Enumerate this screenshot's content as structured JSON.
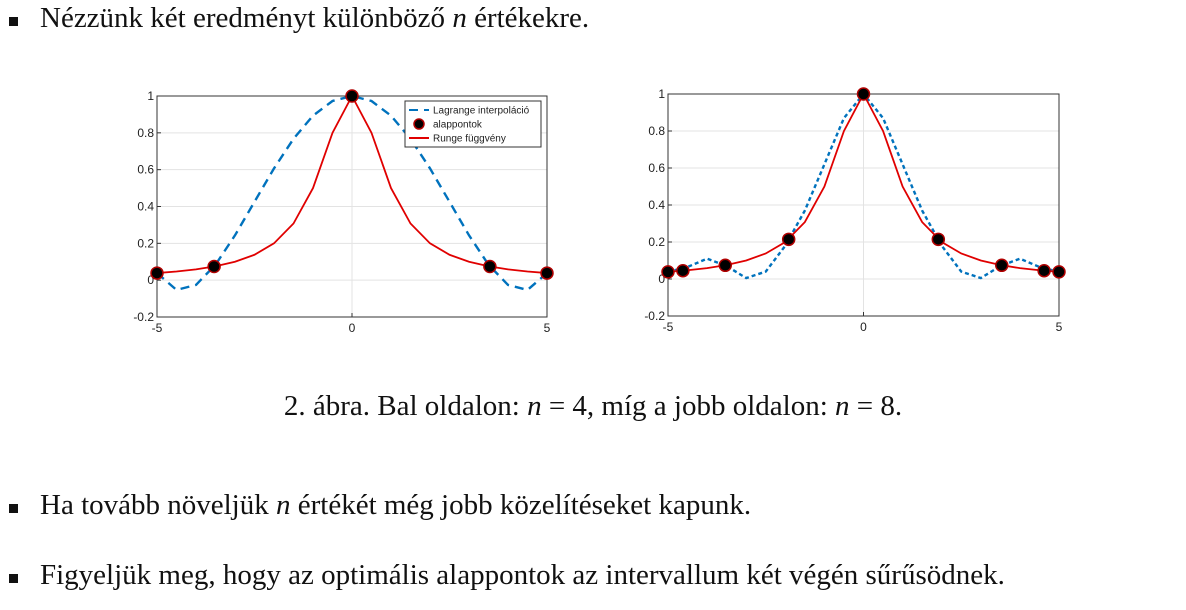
{
  "bullets": [
    {
      "parts": [
        "Nézzünk két eredményt különböző ",
        "n",
        " értékekre."
      ]
    },
    {
      "parts": [
        "Ha tovább növeljük ",
        "n",
        " értékét még jobb közelítéseket kapunk."
      ]
    },
    {
      "parts": [
        "Figyeljük meg, hogy az optimális alappontok az intervallum két végén sűrűsödnek."
      ]
    }
  ],
  "caption": {
    "parts": [
      "2. ábra. Bal oldalon: ",
      "n",
      " = 4, míg a jobb oldalon: ",
      "n",
      " = 8."
    ]
  },
  "chart_data": [
    {
      "type": "line",
      "xlim": [
        -5,
        5
      ],
      "ylim": [
        -0.2,
        1
      ],
      "xticks": [
        -5,
        0,
        5
      ],
      "yticks": [
        -0.2,
        0,
        0.2,
        0.4,
        0.6,
        0.8,
        1
      ],
      "grid": true,
      "legend": "upper right",
      "series": [
        {
          "name": "Lagrange interpoláció",
          "color": "#0072bd",
          "style": "dashed",
          "x": [
            -5,
            -4.5,
            -4,
            -3.5,
            -3,
            -2.5,
            -2,
            -1.5,
            -1,
            -0.5,
            0,
            0.5,
            1,
            1.5,
            2,
            2.5,
            3,
            3.5,
            4,
            4.5,
            5
          ],
          "values": [
            0.0385,
            -0.053,
            -0.0257,
            0.0838,
            0.2436,
            0.4257,
            0.6068,
            0.7676,
            0.8932,
            0.9728,
            1,
            0.9728,
            0.8932,
            0.7676,
            0.6068,
            0.4257,
            0.2436,
            0.0838,
            -0.0257,
            -0.053,
            0.0385
          ]
        },
        {
          "name": "alappontok",
          "color": "#000000",
          "edge": "#b00000",
          "style": "markers",
          "x": [
            -5,
            -3.5355,
            0,
            3.5355,
            5
          ],
          "values": [
            0.0385,
            0.0741,
            1,
            0.0741,
            0.0385
          ]
        },
        {
          "name": "Runge függvény",
          "color": "#e00000",
          "style": "solid",
          "x": [
            -5,
            -4.5,
            -4,
            -3.5,
            -3,
            -2.5,
            -2,
            -1.5,
            -1,
            -0.5,
            0,
            0.5,
            1,
            1.5,
            2,
            2.5,
            3,
            3.5,
            4,
            4.5,
            5
          ],
          "values": [
            0.0385,
            0.0471,
            0.0588,
            0.0755,
            0.1,
            0.1379,
            0.2,
            0.3077,
            0.5,
            0.8,
            1,
            0.8,
            0.5,
            0.3077,
            0.2,
            0.1379,
            0.1,
            0.0755,
            0.0588,
            0.0471,
            0.0385
          ]
        }
      ]
    },
    {
      "type": "line",
      "xlim": [
        -5,
        5
      ],
      "ylim": [
        -0.2,
        1
      ],
      "xticks": [
        -5,
        0,
        5
      ],
      "yticks": [
        -0.2,
        0,
        0.2,
        0.4,
        0.6,
        0.8,
        1
      ],
      "grid": true,
      "series": [
        {
          "color": "#0072bd",
          "style": "dotted",
          "x": [
            -5,
            -4.5,
            -4,
            -3.5,
            -3,
            -2.5,
            -2,
            -1.5,
            -1,
            -0.5,
            0,
            0.5,
            1,
            1.5,
            2,
            2.5,
            3,
            3.5,
            4,
            4.5,
            5
          ],
          "values": [
            0.0385,
            0.065,
            0.11,
            0.07,
            0.005,
            0.04,
            0.18,
            0.37,
            0.62,
            0.87,
            1,
            0.87,
            0.62,
            0.37,
            0.18,
            0.04,
            0.005,
            0.07,
            0.11,
            0.065,
            0.0385
          ]
        },
        {
          "color": "#000000",
          "edge": "#b00000",
          "style": "markers",
          "x": [
            -5,
            -4.6194,
            -3.5355,
            -1.9134,
            0,
            1.9134,
            3.5355,
            4.6194,
            5
          ],
          "values": [
            0.0385,
            0.0448,
            0.0741,
            0.2145,
            1,
            0.2145,
            0.0741,
            0.0448,
            0.0385
          ]
        },
        {
          "color": "#e00000",
          "style": "solid",
          "x": [
            -5,
            -4.5,
            -4,
            -3.5,
            -3,
            -2.5,
            -2,
            -1.5,
            -1,
            -0.5,
            0,
            0.5,
            1,
            1.5,
            2,
            2.5,
            3,
            3.5,
            4,
            4.5,
            5
          ],
          "values": [
            0.0385,
            0.0471,
            0.0588,
            0.0755,
            0.1,
            0.1379,
            0.2,
            0.3077,
            0.5,
            0.8,
            1,
            0.8,
            0.5,
            0.3077,
            0.2,
            0.1379,
            0.1,
            0.0755,
            0.0588,
            0.0471,
            0.0385
          ]
        }
      ]
    }
  ]
}
